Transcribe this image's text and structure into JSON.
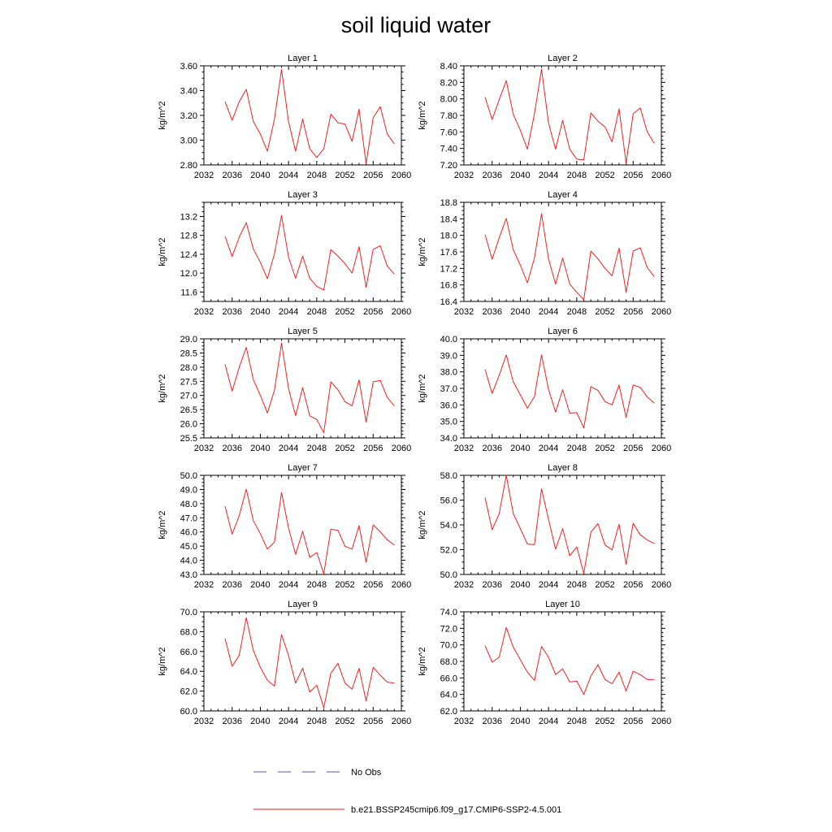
{
  "title": "soil liquid water",
  "legend": {
    "placement": "bottom-center",
    "entries": [
      {
        "label": "No Obs",
        "style": "dashed",
        "color": "#5555bb"
      },
      {
        "label": "b.e21.BSSP245cmip6.f09_g17.CMIP6-SSP2-4.5.001",
        "style": "solid",
        "color": "#ee2222"
      }
    ]
  },
  "chart_data": [
    {
      "type": "line",
      "title": "Layer 1",
      "ylabel": "kg/m^2",
      "xlim": [
        2032,
        2060
      ],
      "x_ticks": [
        2032,
        2036,
        2040,
        2044,
        2048,
        2052,
        2056,
        2060
      ],
      "ylim": [
        2.8,
        3.6
      ],
      "y_ticks": [
        "2.80",
        "3.00",
        "3.20",
        "3.40",
        "3.60"
      ],
      "grid": false,
      "series": [
        {
          "color": "#ee2222",
          "x": [
            2035,
            2036,
            2037,
            2038,
            2039,
            2040,
            2041,
            2042,
            2043,
            2044,
            2045,
            2046,
            2047,
            2048,
            2049,
            2050,
            2051,
            2052,
            2053,
            2054,
            2055,
            2056,
            2057,
            2058,
            2059
          ],
          "values": [
            3.31,
            3.16,
            3.31,
            3.41,
            3.15,
            3.05,
            2.91,
            3.17,
            3.57,
            3.15,
            2.91,
            3.17,
            2.93,
            2.86,
            2.93,
            3.21,
            3.14,
            3.13,
            2.99,
            3.25,
            2.81,
            3.18,
            3.27,
            3.05,
            2.97
          ]
        }
      ]
    },
    {
      "type": "line",
      "title": "Layer 2",
      "ylabel": "kg/m^2",
      "xlim": [
        2032,
        2060
      ],
      "x_ticks": [
        2032,
        2036,
        2040,
        2044,
        2048,
        2052,
        2056,
        2060
      ],
      "ylim": [
        7.2,
        8.4
      ],
      "y_ticks": [
        "7.20",
        "7.40",
        "7.60",
        "7.80",
        "8.00",
        "8.20",
        "8.40"
      ],
      "grid": false,
      "series": [
        {
          "color": "#ee2222",
          "x": [
            2035,
            2036,
            2037,
            2038,
            2039,
            2040,
            2041,
            2042,
            2043,
            2044,
            2045,
            2046,
            2047,
            2048,
            2049,
            2050,
            2051,
            2052,
            2053,
            2054,
            2055,
            2056,
            2057,
            2058,
            2059
          ],
          "values": [
            8.02,
            7.75,
            7.99,
            8.22,
            7.81,
            7.62,
            7.39,
            7.82,
            8.36,
            7.71,
            7.39,
            7.74,
            7.39,
            7.27,
            7.26,
            7.83,
            7.73,
            7.66,
            7.48,
            7.88,
            7.22,
            7.82,
            7.89,
            7.6,
            7.46
          ]
        }
      ]
    },
    {
      "type": "line",
      "title": "Layer 3",
      "ylabel": "kg/m^2",
      "xlim": [
        2032,
        2060
      ],
      "x_ticks": [
        2032,
        2036,
        2040,
        2044,
        2048,
        2052,
        2056,
        2060
      ],
      "ylim": [
        11.4,
        13.5
      ],
      "y_ticks": [
        "11.6",
        "12.0",
        "12.4",
        "12.8",
        "13.2"
      ],
      "grid": false,
      "series": [
        {
          "color": "#ee2222",
          "x": [
            2035,
            2036,
            2037,
            2038,
            2039,
            2040,
            2041,
            2042,
            2043,
            2044,
            2045,
            2046,
            2047,
            2048,
            2049,
            2050,
            2051,
            2052,
            2053,
            2054,
            2055,
            2056,
            2057,
            2058,
            2059
          ],
          "values": [
            12.78,
            12.35,
            12.76,
            13.07,
            12.51,
            12.23,
            11.88,
            12.41,
            13.22,
            12.34,
            11.89,
            12.36,
            11.89,
            11.72,
            11.64,
            12.5,
            12.36,
            12.2,
            12.0,
            12.56,
            11.7,
            12.5,
            12.58,
            12.15,
            11.98
          ]
        }
      ]
    },
    {
      "type": "line",
      "title": "Layer 4",
      "ylabel": "kg/m^2",
      "xlim": [
        2032,
        2060
      ],
      "x_ticks": [
        2032,
        2036,
        2040,
        2044,
        2048,
        2052,
        2056,
        2060
      ],
      "ylim": [
        16.4,
        18.8
      ],
      "y_ticks": [
        "16.4",
        "16.8",
        "17.2",
        "17.6",
        "18.0",
        "18.4",
        "18.8"
      ],
      "grid": false,
      "series": [
        {
          "color": "#ee2222",
          "x": [
            2035,
            2036,
            2037,
            2038,
            2039,
            2040,
            2041,
            2042,
            2043,
            2044,
            2045,
            2046,
            2047,
            2048,
            2049,
            2050,
            2051,
            2052,
            2053,
            2054,
            2055,
            2056,
            2057,
            2058,
            2059
          ],
          "values": [
            18.02,
            17.42,
            17.94,
            18.41,
            17.65,
            17.28,
            16.85,
            17.45,
            18.52,
            17.43,
            16.82,
            17.45,
            16.82,
            16.62,
            16.44,
            17.62,
            17.43,
            17.2,
            17.02,
            17.69,
            16.62,
            17.62,
            17.7,
            17.22,
            17.0
          ]
        }
      ]
    },
    {
      "type": "line",
      "title": "Layer 5",
      "ylabel": "kg/m^2",
      "xlim": [
        2032,
        2060
      ],
      "x_ticks": [
        2032,
        2036,
        2040,
        2044,
        2048,
        2052,
        2056,
        2060
      ],
      "ylim": [
        25.5,
        29.0
      ],
      "y_ticks": [
        "25.5",
        "26.0",
        "26.5",
        "27.0",
        "27.5",
        "28.0",
        "28.5",
        "29.0"
      ],
      "grid": false,
      "series": [
        {
          "color": "#ee2222",
          "x": [
            2035,
            2036,
            2037,
            2038,
            2039,
            2040,
            2041,
            2042,
            2043,
            2044,
            2045,
            2046,
            2047,
            2048,
            2049,
            2050,
            2051,
            2052,
            2053,
            2054,
            2055,
            2056,
            2057,
            2058,
            2059
          ],
          "values": [
            28.1,
            27.15,
            27.99,
            28.7,
            27.56,
            27.0,
            26.38,
            27.18,
            28.85,
            27.25,
            26.28,
            27.28,
            26.28,
            26.15,
            25.68,
            27.48,
            27.2,
            26.78,
            26.63,
            27.55,
            26.06,
            27.48,
            27.53,
            26.93,
            26.63
          ]
        }
      ]
    },
    {
      "type": "line",
      "title": "Layer 6",
      "ylabel": "kg/m^2",
      "xlim": [
        2032,
        2060
      ],
      "x_ticks": [
        2032,
        2036,
        2040,
        2044,
        2048,
        2052,
        2056,
        2060
      ],
      "ylim": [
        34.0,
        40.0
      ],
      "y_ticks": [
        "34.0",
        "35.0",
        "36.0",
        "37.0",
        "38.0",
        "39.0",
        "40.0"
      ],
      "grid": false,
      "series": [
        {
          "color": "#ee2222",
          "x": [
            2035,
            2036,
            2037,
            2038,
            2039,
            2040,
            2041,
            2042,
            2043,
            2044,
            2045,
            2046,
            2047,
            2048,
            2049,
            2050,
            2051,
            2052,
            2053,
            2054,
            2055,
            2056,
            2057,
            2058,
            2059
          ],
          "values": [
            38.15,
            36.69,
            37.79,
            39.02,
            37.38,
            36.61,
            35.8,
            36.51,
            39.02,
            36.95,
            35.56,
            36.92,
            35.5,
            35.53,
            34.6,
            37.11,
            36.88,
            36.2,
            36.0,
            37.2,
            35.24,
            37.2,
            37.06,
            36.48,
            36.1
          ]
        }
      ]
    },
    {
      "type": "line",
      "title": "Layer 7",
      "ylabel": "kg/m^2",
      "xlim": [
        2032,
        2060
      ],
      "x_ticks": [
        2032,
        2036,
        2040,
        2044,
        2048,
        2052,
        2056,
        2060
      ],
      "ylim": [
        43.0,
        50.0
      ],
      "y_ticks": [
        "43.0",
        "44.0",
        "45.0",
        "46.0",
        "47.0",
        "48.0",
        "49.0",
        "50.0"
      ],
      "grid": false,
      "series": [
        {
          "color": "#ee2222",
          "x": [
            2035,
            2036,
            2037,
            2038,
            2039,
            2040,
            2041,
            2042,
            2043,
            2044,
            2045,
            2046,
            2047,
            2048,
            2049,
            2050,
            2051,
            2052,
            2053,
            2054,
            2055,
            2056,
            2057,
            2058,
            2059
          ],
          "values": [
            47.8,
            45.84,
            47.15,
            49.02,
            46.8,
            45.88,
            44.79,
            45.29,
            48.77,
            46.29,
            44.41,
            46.04,
            44.2,
            44.55,
            43.04,
            46.19,
            46.12,
            44.99,
            44.79,
            46.45,
            43.86,
            46.5,
            46.01,
            45.45,
            45.07
          ]
        }
      ]
    },
    {
      "type": "line",
      "title": "Layer 8",
      "ylabel": "kg/m^2",
      "xlim": [
        2032,
        2060
      ],
      "x_ticks": [
        2032,
        2036,
        2040,
        2044,
        2048,
        2052,
        2056,
        2060
      ],
      "ylim": [
        50.0,
        58.0
      ],
      "y_ticks": [
        "50.0",
        "52.0",
        "54.0",
        "56.0",
        "58.0"
      ],
      "grid": false,
      "series": [
        {
          "color": "#ee2222",
          "x": [
            2035,
            2036,
            2037,
            2038,
            2039,
            2040,
            2041,
            2042,
            2043,
            2044,
            2045,
            2046,
            2047,
            2048,
            2049,
            2050,
            2051,
            2052,
            2053,
            2054,
            2055,
            2056,
            2057,
            2058,
            2059
          ],
          "values": [
            56.2,
            53.6,
            54.9,
            58.0,
            54.9,
            53.7,
            52.45,
            52.4,
            56.9,
            54.45,
            52.03,
            53.7,
            51.5,
            52.22,
            50.08,
            53.4,
            54.1,
            52.38,
            51.98,
            54.05,
            50.81,
            54.12,
            53.2,
            52.78,
            52.5
          ]
        }
      ]
    },
    {
      "type": "line",
      "title": "Layer 9",
      "ylabel": "kg/m^2",
      "xlim": [
        2032,
        2060
      ],
      "x_ticks": [
        2032,
        2036,
        2040,
        2044,
        2048,
        2052,
        2056,
        2060
      ],
      "ylim": [
        60.0,
        70.0
      ],
      "y_ticks": [
        "60.0",
        "62.0",
        "64.0",
        "66.0",
        "68.0",
        "70.0"
      ],
      "grid": false,
      "series": [
        {
          "color": "#ee2222",
          "x": [
            2035,
            2036,
            2037,
            2038,
            2039,
            2040,
            2041,
            2042,
            2043,
            2044,
            2045,
            2046,
            2047,
            2048,
            2049,
            2050,
            2051,
            2052,
            2053,
            2054,
            2055,
            2056,
            2057,
            2058,
            2059
          ],
          "values": [
            67.3,
            64.5,
            65.6,
            69.4,
            66.1,
            64.4,
            63.1,
            62.5,
            67.7,
            65.6,
            62.8,
            64.3,
            61.9,
            62.6,
            60.3,
            63.8,
            64.8,
            62.8,
            62.2,
            64.3,
            61.0,
            64.4,
            63.6,
            62.9,
            62.8
          ]
        }
      ]
    },
    {
      "type": "line",
      "title": "Layer 10",
      "ylabel": "kg/m^2",
      "xlim": [
        2032,
        2060
      ],
      "x_ticks": [
        2032,
        2036,
        2040,
        2044,
        2048,
        2052,
        2056,
        2060
      ],
      "ylim": [
        62.0,
        74.0
      ],
      "y_ticks": [
        "62.0",
        "64.0",
        "66.0",
        "68.0",
        "70.0",
        "72.0",
        "74.0"
      ],
      "grid": false,
      "series": [
        {
          "color": "#ee2222",
          "x": [
            2035,
            2036,
            2037,
            2038,
            2039,
            2040,
            2041,
            2042,
            2043,
            2044,
            2045,
            2046,
            2047,
            2048,
            2049,
            2050,
            2051,
            2052,
            2053,
            2054,
            2055,
            2056,
            2057,
            2058,
            2059
          ],
          "values": [
            69.9,
            67.9,
            68.5,
            72.1,
            69.7,
            68.2,
            66.7,
            65.7,
            69.8,
            68.5,
            66.4,
            67.1,
            65.5,
            65.6,
            64.0,
            66.2,
            67.6,
            65.8,
            65.3,
            66.7,
            64.4,
            66.8,
            66.4,
            65.8,
            65.8
          ]
        }
      ]
    }
  ]
}
